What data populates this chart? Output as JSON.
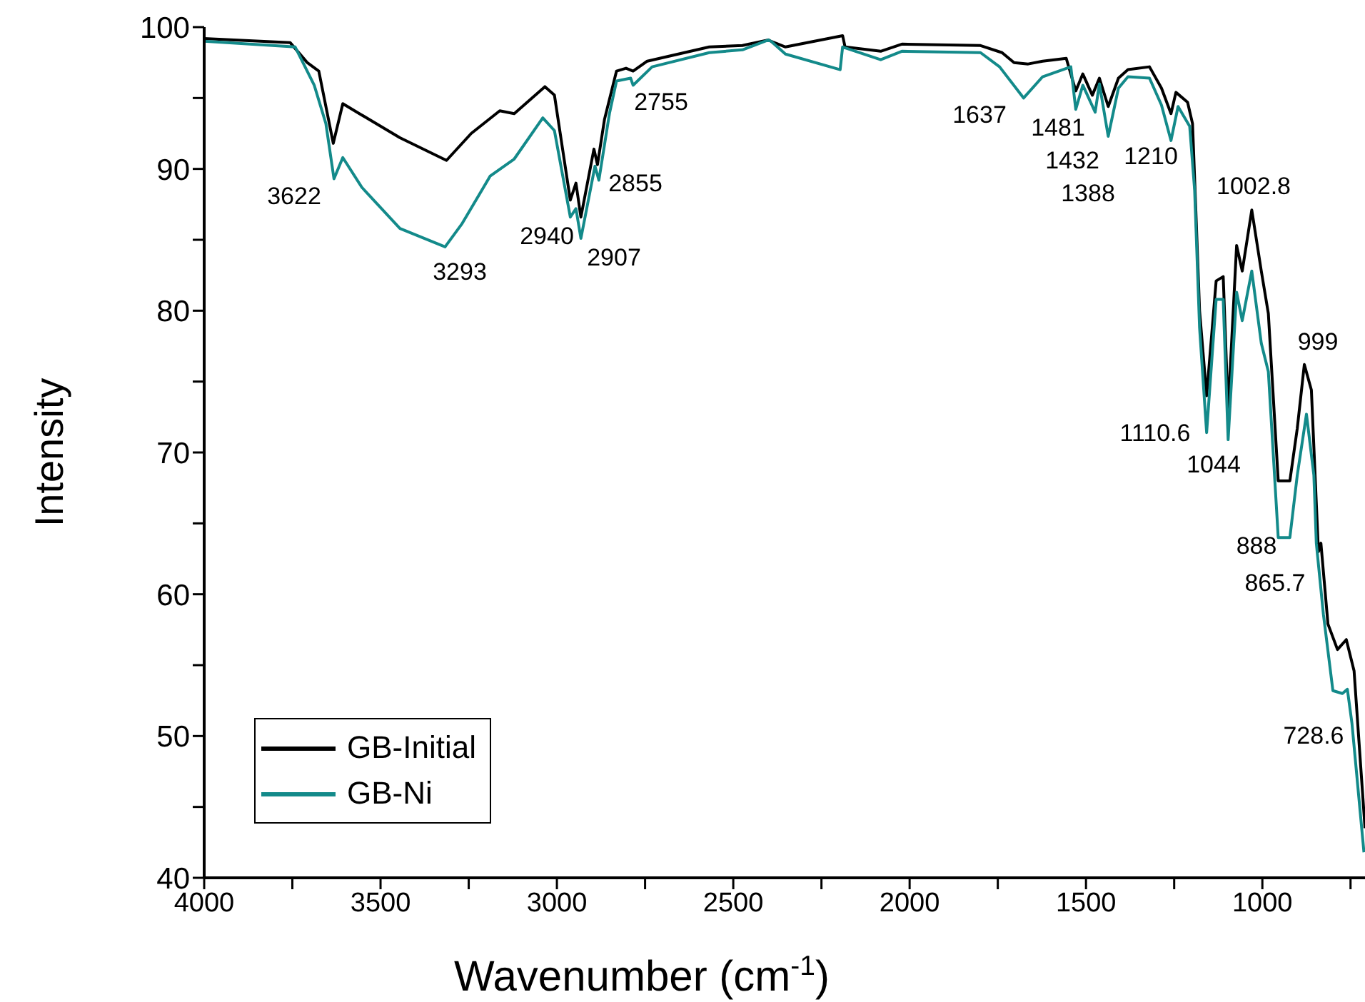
{
  "chart_data": {
    "type": "line",
    "xlabel": "Wavenumber (cm$^{-1}$)",
    "ylabel": "Intensity",
    "xlim": [
      4000,
      709
    ],
    "ylim": [
      40,
      100
    ],
    "xticks": [
      4000,
      {
        "value": 3750,
        "label": null
      },
      3500,
      {
        "value": 3250,
        "label": null
      },
      3000,
      {
        "value": 2750,
        "label": null
      },
      2500,
      {
        "value": 2250,
        "label": null
      },
      2000,
      {
        "value": 1750,
        "label": null
      },
      1500,
      {
        "value": 1250,
        "label": null
      },
      1000,
      {
        "value": 750,
        "label": null
      }
    ],
    "yticks": [
      40,
      {
        "value": 45,
        "label": null
      },
      50,
      {
        "value": 55,
        "label": null
      },
      60,
      {
        "value": 65,
        "label": null
      },
      70,
      {
        "value": 75,
        "label": null
      },
      80,
      {
        "value": 85,
        "label": null
      },
      90,
      {
        "value": 95,
        "label": null
      },
      100
    ],
    "grid": false,
    "legend": "bottom left",
    "marker": "none",
    "line_style": "solid",
    "series": [
      {
        "name": "GB-Initial",
        "color": "#000000",
        "x": [
          4000,
          3756,
          3708,
          3675,
          3634,
          3607,
          3560,
          3445,
          3313,
          3243,
          3162,
          3121,
          3034,
          3007,
          2962,
          2946,
          2932,
          2895,
          2885,
          2865,
          2831,
          2804,
          2784,
          2744,
          2568,
          2474,
          2400,
          2393,
          2352,
          2190,
          2183,
          2082,
          2022,
          1799,
          1738,
          1704,
          1664,
          1623,
          1556,
          1529,
          1509,
          1482,
          1462,
          1437,
          1408,
          1381,
          1320,
          1286,
          1259,
          1245,
          1212,
          1198,
          1190,
          1178,
          1158,
          1131,
          1111,
          1097,
          1073,
          1057,
          1030,
          1003,
          983,
          955,
          922,
          901,
          881,
          861,
          841,
          834,
          814,
          787,
          762,
          740,
          709
        ],
        "values": [
          99.2,
          98.9,
          97.5,
          96.9,
          91.8,
          94.6,
          93.9,
          92.2,
          90.6,
          92.5,
          94.1,
          93.9,
          95.8,
          95.2,
          87.8,
          89.0,
          86.6,
          91.4,
          90.3,
          93.5,
          96.9,
          97.1,
          96.9,
          97.6,
          98.6,
          98.7,
          99.1,
          99.0,
          98.6,
          99.4,
          98.6,
          98.3,
          98.8,
          98.7,
          98.2,
          97.5,
          97.4,
          97.6,
          97.8,
          95.5,
          96.7,
          95.2,
          96.4,
          94.4,
          96.4,
          97.0,
          97.2,
          95.7,
          93.9,
          95.4,
          94.7,
          93.2,
          88.0,
          80.0,
          74.0,
          82.1,
          82.4,
          73.0,
          84.6,
          82.8,
          87.1,
          82.8,
          79.8,
          68.0,
          68.0,
          71.7,
          76.2,
          74.4,
          63.0,
          63.6,
          57.9,
          56.1,
          56.8,
          54.6,
          43.5
        ]
      },
      {
        "name": "GB-Ni",
        "color": "#138a8a",
        "x": [
          4000,
          3742,
          3688,
          3655,
          3632,
          3607,
          3553,
          3445,
          3317,
          3270,
          3189,
          3121,
          3040,
          3007,
          2962,
          2946,
          2932,
          2892,
          2881,
          2851,
          2831,
          2791,
          2784,
          2730,
          2568,
          2474,
          2400,
          2393,
          2352,
          2197,
          2190,
          2082,
          2022,
          1799,
          1745,
          1677,
          1623,
          1543,
          1529,
          1509,
          1474,
          1462,
          1437,
          1408,
          1381,
          1320,
          1286,
          1259,
          1239,
          1206,
          1192,
          1178,
          1158,
          1131,
          1111,
          1097,
          1073,
          1057,
          1030,
          1003,
          983,
          955,
          922,
          901,
          875,
          854,
          847,
          827,
          800,
          773,
          759,
          746,
          712
        ],
        "values": [
          99.0,
          98.6,
          95.9,
          93.2,
          89.3,
          90.8,
          88.7,
          85.8,
          84.5,
          86.1,
          89.5,
          90.7,
          93.6,
          92.7,
          86.6,
          87.2,
          85.1,
          90.2,
          89.2,
          93.9,
          96.2,
          96.4,
          95.9,
          97.2,
          98.2,
          98.4,
          99.1,
          99.0,
          98.1,
          97.0,
          98.6,
          97.7,
          98.3,
          98.2,
          97.2,
          95.0,
          96.5,
          97.2,
          94.2,
          95.9,
          94.0,
          96.0,
          92.3,
          95.7,
          96.5,
          96.4,
          94.5,
          92.0,
          94.4,
          93.0,
          88.5,
          78.8,
          71.4,
          80.8,
          80.8,
          70.9,
          81.3,
          79.3,
          82.8,
          77.7,
          75.7,
          64.0,
          64.0,
          68.4,
          72.7,
          68.4,
          63.6,
          58.6,
          53.2,
          53.0,
          53.3,
          50.9,
          41.8
        ]
      }
    ],
    "annotations": [
      "3622",
      "3293",
      "2940",
      "2907",
      "2855",
      "2755",
      "1637",
      "1481",
      "1432",
      "1388",
      "1210",
      "1002.8",
      "999",
      "1110.6",
      "1044",
      "888",
      "865.7",
      "728.6"
    ]
  }
}
